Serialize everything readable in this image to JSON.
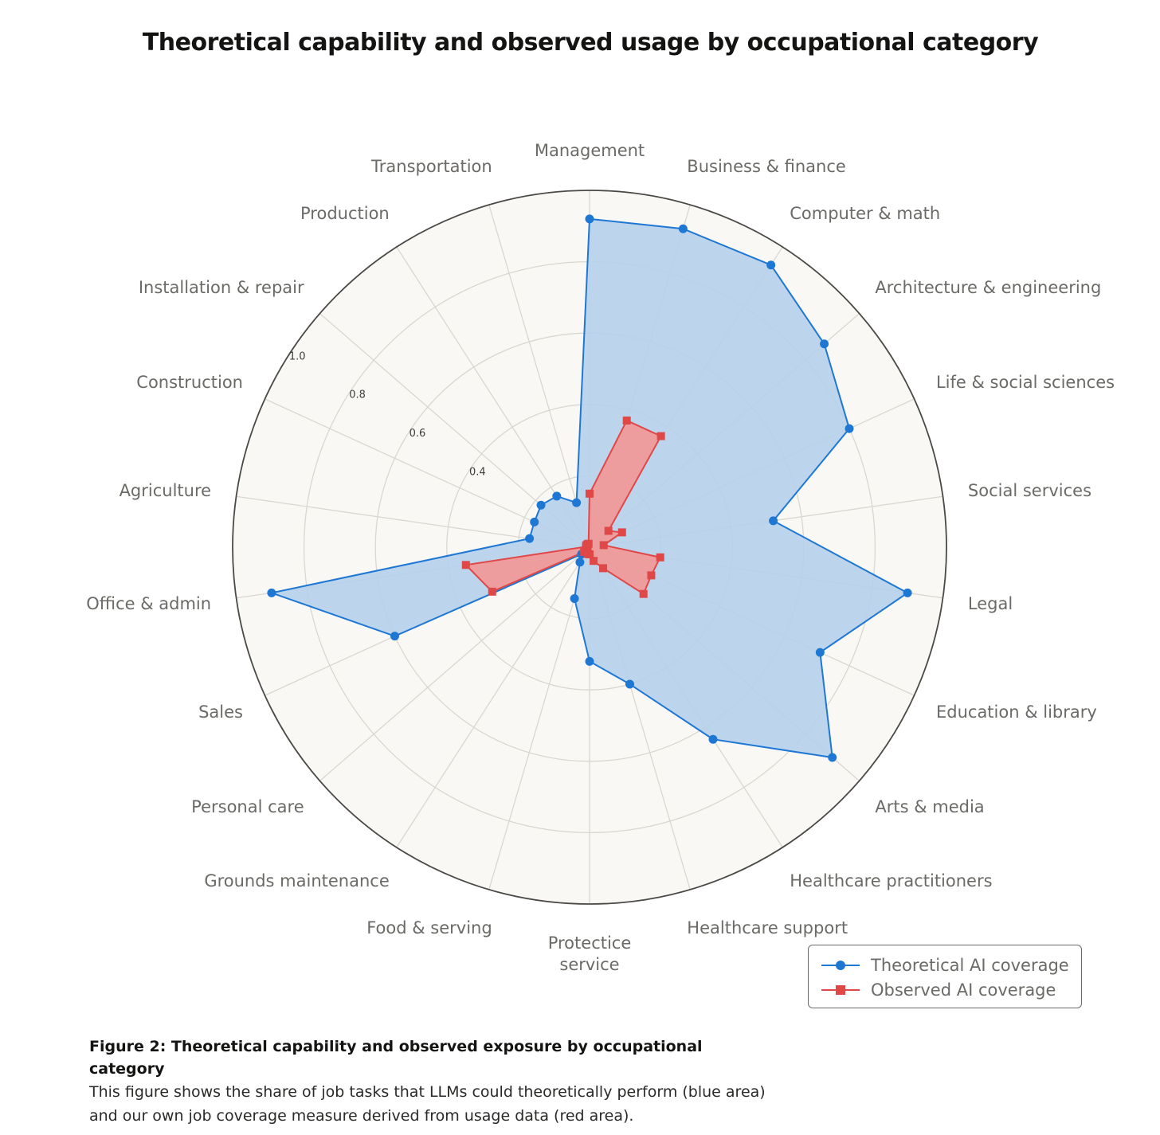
{
  "caption": {
    "title": "Figure 2: Theoretical capability and observed exposure by occupational category",
    "body": "This figure shows the share of job tasks that LLMs could theoretically perform (blue area) and our own job coverage measure derived from usage data (red area)."
  },
  "chart_data": {
    "type": "radar",
    "title": "Theoretical capability and observed usage by occupational category",
    "categories": [
      "Management",
      "Business & finance",
      "Computer & math",
      "Architecture & engineering",
      "Life & social sciences",
      "Social services",
      "Legal",
      "Education & library",
      "Arts & media",
      "Healthcare practitioners",
      "Healthcare support",
      "Protectice service",
      "Food & serving",
      "Grounds maintenance",
      "Personal care",
      "Sales",
      "Office & admin",
      "Agriculture",
      "Construction",
      "Installation & repair",
      "Production",
      "Transportation"
    ],
    "radial_ticks": [
      "0.4",
      "0.8",
      "0.6",
      "1.0"
    ],
    "rlim": [
      0,
      1.0
    ],
    "grid": true,
    "series": [
      {
        "name": "Theoretical AI coverage",
        "color": "#1f77d4",
        "fill": "#b6d1ea",
        "marker": "circle",
        "values": [
          0.92,
          0.93,
          0.94,
          0.87,
          0.8,
          0.52,
          0.9,
          0.71,
          0.9,
          0.64,
          0.4,
          0.32,
          0.15,
          0.05,
          0.03,
          0.6,
          0.9,
          0.17,
          0.17,
          0.18,
          0.17,
          0.13
        ]
      },
      {
        "name": "Observed AI coverage",
        "color": "#e04747",
        "fill": "#f09a9a",
        "marker": "square",
        "values": [
          0.15,
          0.37,
          0.37,
          0.07,
          0.1,
          0.04,
          0.2,
          0.19,
          0.2,
          0.07,
          0.04,
          0.02,
          0.02,
          0.01,
          0.02,
          0.3,
          0.35,
          0.01,
          0.01,
          0.01,
          0.01,
          0.01
        ]
      }
    ],
    "legend_position": "bottom-right"
  }
}
